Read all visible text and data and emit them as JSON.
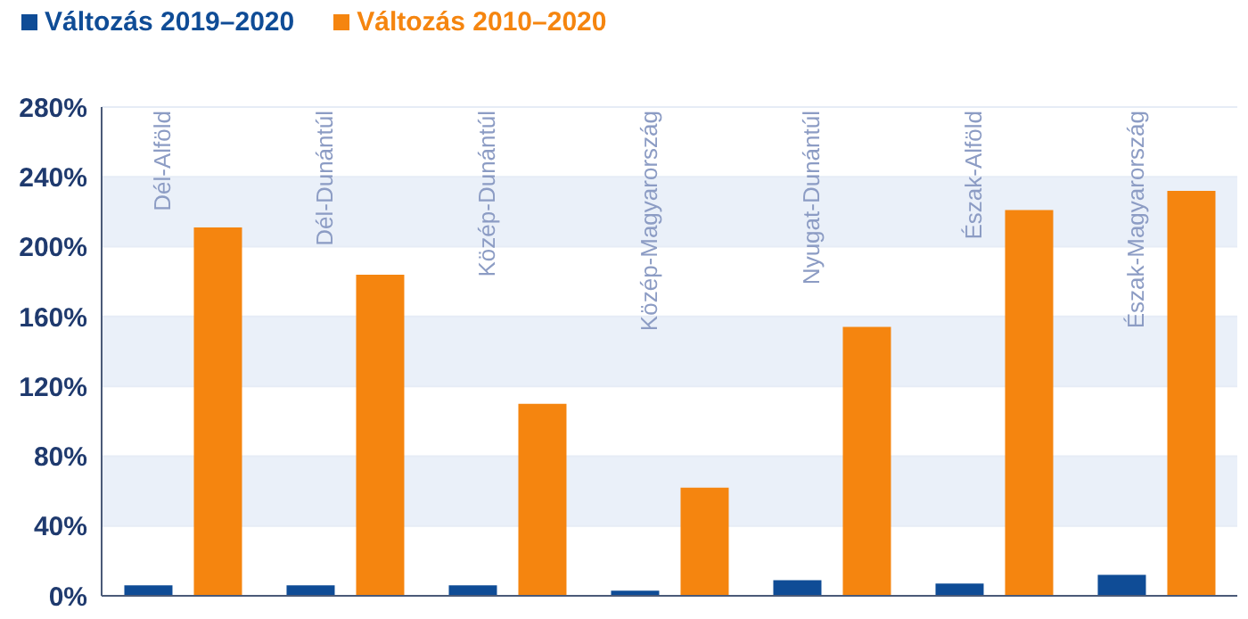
{
  "chart_data": {
    "type": "bar",
    "categories": [
      "Dél-Alföld",
      "Dél-Dunántúl",
      "Közép-Dunántúl",
      "Közép-Magyarország",
      "Nyugat-Dunántúl",
      "Észak-Alföld",
      "Észak-Magyarország"
    ],
    "series": [
      {
        "name": "Változás 2019–2020",
        "color": "#0f4c96",
        "values": [
          6,
          6,
          6,
          3,
          9,
          7,
          12
        ]
      },
      {
        "name": "Változás 2010–2020",
        "color": "#f5850f",
        "values": [
          211,
          184,
          110,
          62,
          154,
          221,
          232
        ]
      }
    ],
    "ylim": [
      0,
      280
    ],
    "yticks": [
      {
        "value": 0,
        "label": "0%"
      },
      {
        "value": 40,
        "label": "40%"
      },
      {
        "value": 80,
        "label": "80%"
      },
      {
        "value": 120,
        "label": "120%"
      },
      {
        "value": 160,
        "label": "160%"
      },
      {
        "value": 200,
        "label": "200%"
      },
      {
        "value": 240,
        "label": "240%"
      },
      {
        "value": 280,
        "label": "280%"
      }
    ],
    "grid": "y",
    "legend": "top left"
  }
}
